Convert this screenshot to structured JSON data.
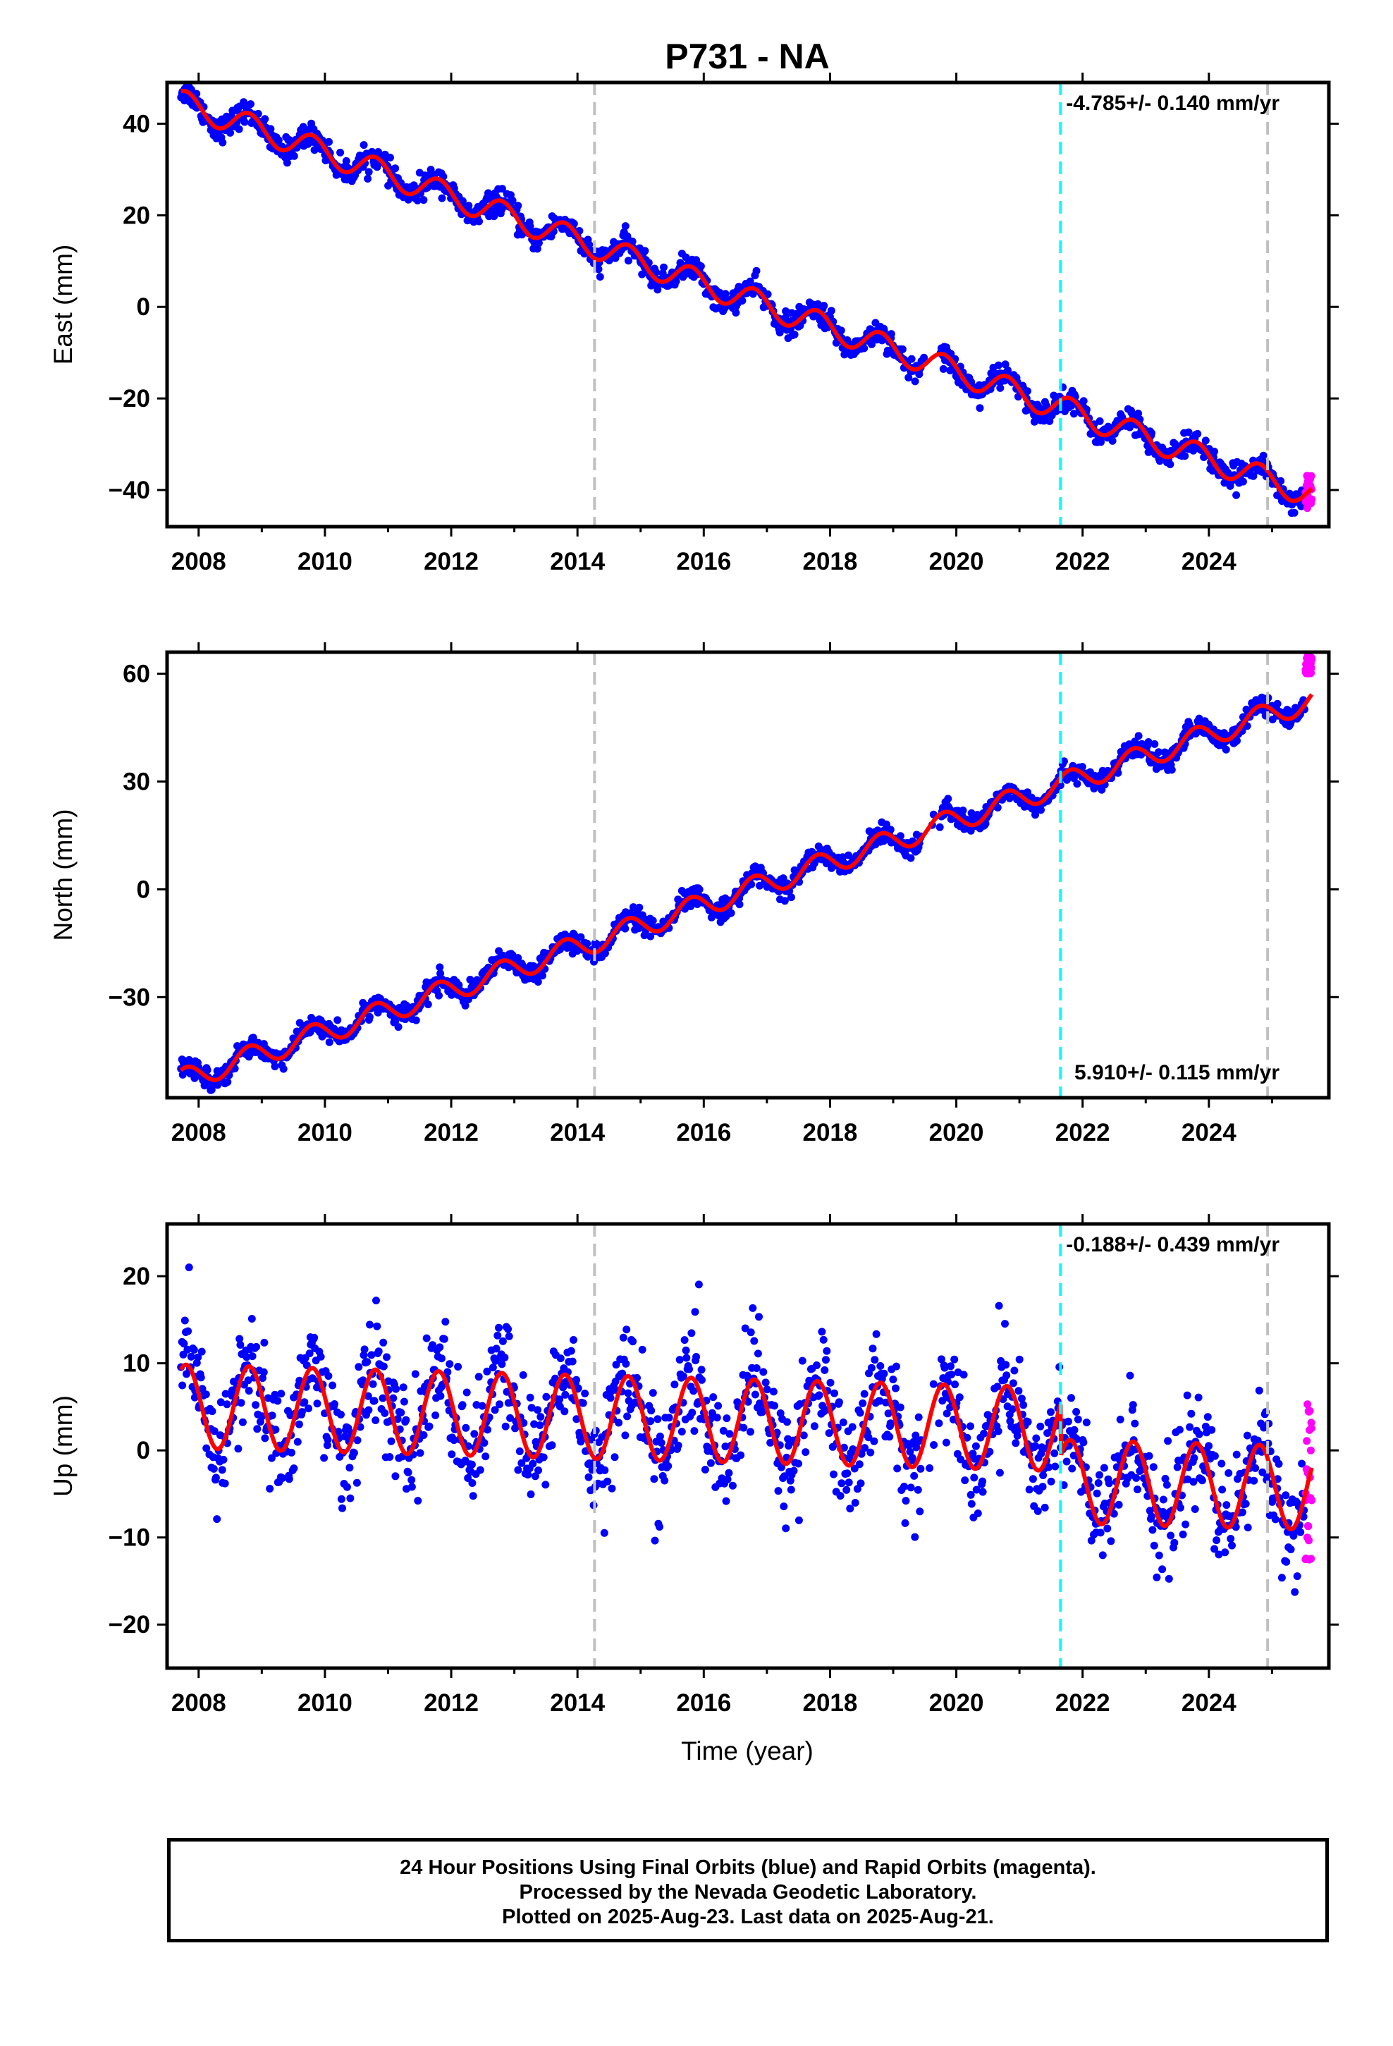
{
  "title": "P731 - NA",
  "xlabel": "Time (year)",
  "footer": [
    "24 Hour Positions Using Final Orbits (blue) and Rapid Orbits (magenta).",
    "Processed by the Nevada Geodetic Laboratory.",
    "Plotted on 2025-Aug-23. Last data on 2025-Aug-21."
  ],
  "colors": {
    "final_orbits": "#0000ff",
    "rapid_orbits": "#ff00ff",
    "model": "#ff0000",
    "equipment_change": "#c0c0c0",
    "earthquake": "#00ffff"
  },
  "chart_data": [
    {
      "type": "scatter",
      "component": "east",
      "ylabel": "East (mm)",
      "rate_label": "-4.785+/- 0.140 mm/yr",
      "xlim": [
        2007.5,
        2025.9
      ],
      "ylim": [
        -48,
        49
      ],
      "xticks": [
        2008,
        2010,
        2012,
        2014,
        2016,
        2018,
        2020,
        2022,
        2024
      ],
      "yticks": [
        -40,
        -20,
        0,
        20,
        40
      ],
      "ytick_labels": [
        "−40",
        "−20",
        "0",
        "20",
        "40"
      ],
      "start": 2007.72,
      "end": 2025.63,
      "intercept_2008": 43.3,
      "rate_mm_yr": -4.785,
      "annual_amp": 2.8,
      "scatter": 1.3,
      "offset_2021_6": 0,
      "rapid_range": [
        -44,
        -36
      ],
      "gray_lines": [
        2014.27,
        2024.93
      ],
      "cyan_lines": [
        2021.65
      ]
    },
    {
      "type": "scatter",
      "component": "north",
      "ylabel": "North (mm)",
      "rate_label": "5.910+/- 0.115 mm/yr",
      "xlim": [
        2007.5,
        2025.9
      ],
      "ylim": [
        -58,
        66
      ],
      "xticks": [
        2008,
        2010,
        2012,
        2014,
        2016,
        2018,
        2020,
        2022,
        2024
      ],
      "yticks": [
        -30,
        0,
        30,
        60
      ],
      "ytick_labels": [
        "−30",
        "0",
        "30",
        "60"
      ],
      "start": 2007.72,
      "end": 2025.63,
      "intercept_2008": -51.5,
      "rate_mm_yr": 5.91,
      "annual_amp": 3.2,
      "scatter": 1.4,
      "offset_2021_6": 0,
      "rapid_range": [
        60,
        65
      ],
      "gray_lines": [
        2014.27,
        2024.93
      ],
      "cyan_lines": [
        2021.65
      ]
    },
    {
      "type": "scatter",
      "component": "up",
      "ylabel": "Up (mm)",
      "rate_label": "-0.188+/- 0.439 mm/yr",
      "xlim": [
        2007.5,
        2025.9
      ],
      "ylim": [
        -25,
        26
      ],
      "xticks": [
        2008,
        2010,
        2012,
        2014,
        2016,
        2018,
        2020,
        2022,
        2024
      ],
      "yticks": [
        -20,
        -10,
        0,
        10,
        20
      ],
      "ytick_labels": [
        "−20",
        "−10",
        "0",
        "10",
        "20"
      ],
      "start": 2007.72,
      "end": 2025.63,
      "intercept_2008": 5,
      "rate_mm_yr": -0.188,
      "annual_amp": 4.8,
      "scatter": 3.2,
      "offset_2021_6": -6,
      "rapid_range": [
        -13,
        6
      ],
      "gray_lines": [
        2014.27,
        2024.93
      ],
      "cyan_lines": [
        2021.65
      ]
    }
  ]
}
